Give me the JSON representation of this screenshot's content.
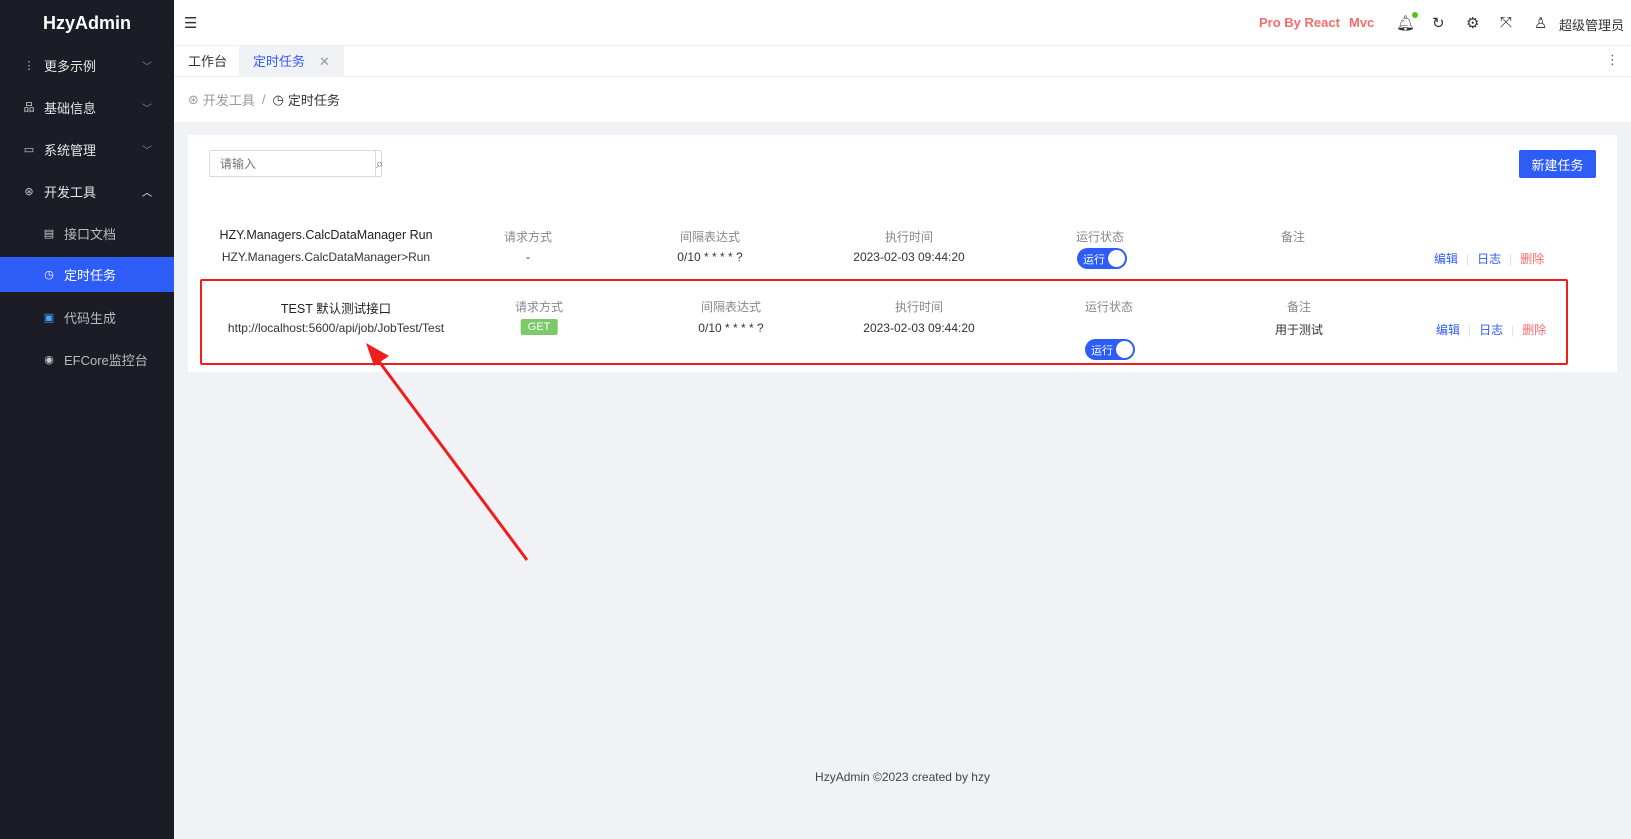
{
  "app": {
    "title": "HzyAdmin"
  },
  "sidebar": {
    "items": [
      {
        "label": "更多示例",
        "icon": "more-vertical-icon",
        "chevron": "down"
      },
      {
        "label": "基础信息",
        "icon": "cluster-icon",
        "chevron": "down"
      },
      {
        "label": "系统管理",
        "icon": "desktop-icon",
        "chevron": "down"
      },
      {
        "label": "开发工具",
        "icon": "codesandbox-icon",
        "chevron": "up"
      },
      {
        "label": "接口文档",
        "icon": "file-search-icon"
      },
      {
        "label": "定时任务",
        "icon": "clock-icon",
        "active": true
      },
      {
        "label": "代码生成",
        "icon": "terminal-icon"
      },
      {
        "label": "EFCore监控台",
        "icon": "dashboard-icon"
      }
    ]
  },
  "header": {
    "links": [
      "Pro By React",
      "Mvc"
    ],
    "user": "超级管理员",
    "link_color": "#f56c6c"
  },
  "tabs": [
    {
      "label": "工作台"
    },
    {
      "label": "定时任务",
      "active": true
    }
  ],
  "breadcrumb": [
    "开发工具",
    "/",
    "定时任务"
  ],
  "toolbar": {
    "search_placeholder": "请输入",
    "new_label": "新建任务"
  },
  "columns": {
    "method": "请求方式",
    "interval": "间隔表达式",
    "time": "执行时间",
    "status": "运行状态",
    "note": "备注"
  },
  "rows": [
    {
      "title": "HZY.Managers.CalcDataManager Run",
      "sub": "HZY.Managers.CalcDataManager>Run",
      "method": "-",
      "interval": "0/10 * * * * ?",
      "time": "2023-02-03 09:44:20",
      "status": "运行",
      "status_on": true,
      "note": "",
      "actions": [
        "编辑",
        "日志",
        "删除"
      ]
    },
    {
      "title": "TEST 默认测试接口",
      "sub": "http://localhost:5600/api/job/JobTest/Test",
      "method": "GET",
      "interval": "0/10 * * * * ?",
      "time": "2023-02-03 09:44:20",
      "status": "运行",
      "status_on": true,
      "note": "用于测试",
      "actions": [
        "编辑",
        "日志",
        "删除"
      ],
      "highlighted": true
    }
  ],
  "footer": "HzyAdmin ©2023 created by hzy",
  "colors": {
    "primary": "#2d5cf6",
    "sidebar": "#1b1c25",
    "annotation": "#f01d1d",
    "get": "#7cc96a"
  }
}
